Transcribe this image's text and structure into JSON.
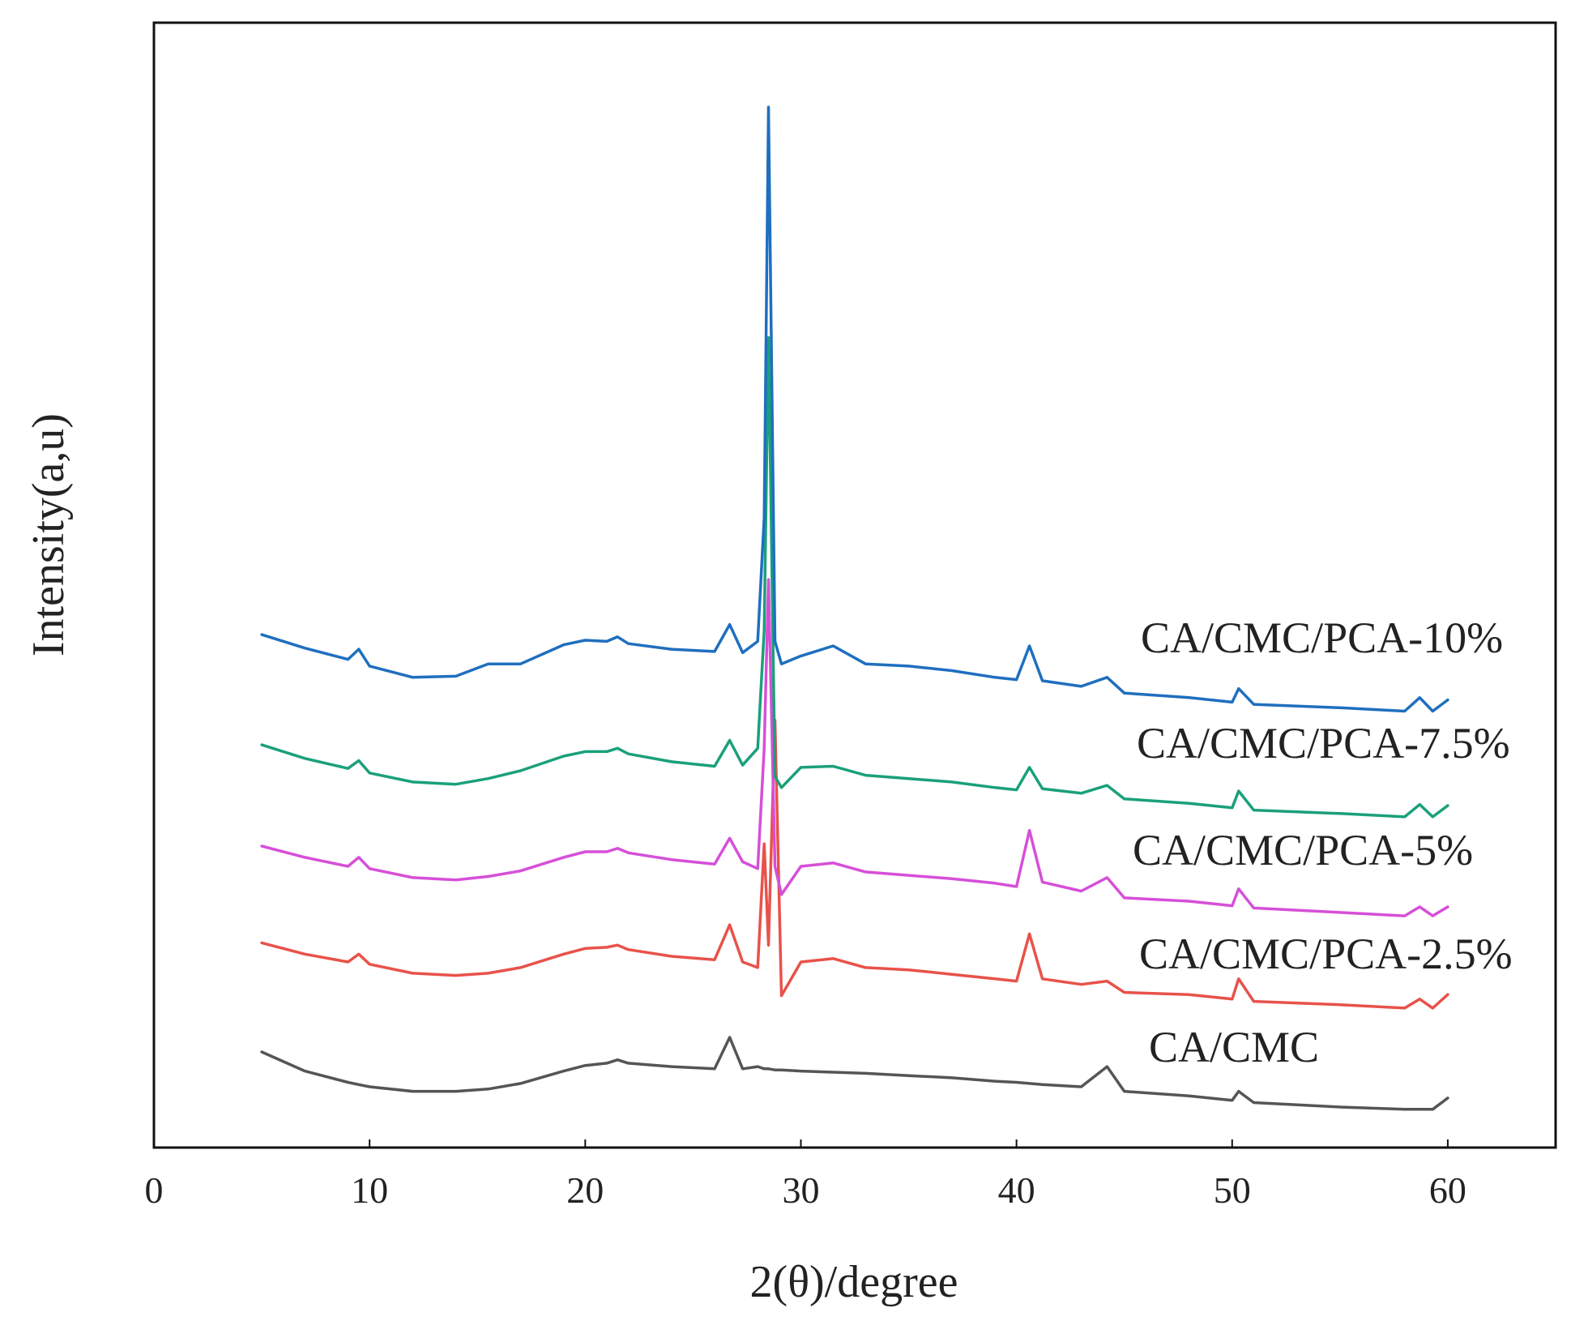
{
  "chart_data": {
    "type": "line",
    "title": "",
    "xlabel": "2(θ)/degree",
    "ylabel": "Intensity(a,u)",
    "xlim": [
      0,
      65
    ],
    "ylim": [
      0,
      1000
    ],
    "xticks": [
      0,
      10,
      20,
      30,
      40,
      50,
      60
    ],
    "yticks_shown": false,
    "grid": false,
    "legend": "inline labels at right of each trace",
    "x": [
      5,
      7,
      9,
      9.5,
      10,
      12,
      14,
      15.5,
      17,
      19,
      20,
      21,
      21.5,
      22,
      24,
      26,
      26.7,
      27.3,
      28,
      28.3,
      28.5,
      28.8,
      29.1,
      30,
      31.5,
      33,
      35,
      37,
      39,
      40,
      40.6,
      41.2,
      43,
      44.2,
      45,
      48,
      50,
      50.3,
      51,
      55,
      58,
      58.7,
      59.3,
      60
    ],
    "series": [
      {
        "name": "CA/CMC",
        "color": "#555555",
        "values": [
          85,
          68,
          58,
          56,
          54,
          50,
          50,
          52,
          57,
          68,
          73,
          75,
          78,
          75,
          72,
          70,
          98,
          70,
          72,
          70,
          70,
          69,
          69,
          68,
          67,
          66,
          64,
          62,
          59,
          58,
          57,
          56,
          54,
          72,
          50,
          46,
          42,
          50,
          40,
          36,
          34,
          34,
          34,
          44
        ]
      },
      {
        "name": "CA/CMC/PCA-2.5%",
        "color": "#e8524a",
        "values": [
          182,
          172,
          165,
          172,
          163,
          155,
          153,
          155,
          160,
          172,
          177,
          178,
          180,
          176,
          170,
          167,
          198,
          165,
          160,
          270,
          180,
          380,
          135,
          165,
          168,
          160,
          158,
          154,
          150,
          148,
          190,
          150,
          145,
          148,
          138,
          136,
          132,
          150,
          130,
          127,
          124,
          132,
          124,
          136
        ]
      },
      {
        "name": "CA/CMC/PCA-5%",
        "color": "#d64fd8",
        "values": [
          268,
          258,
          250,
          258,
          248,
          240,
          238,
          241,
          246,
          258,
          263,
          263,
          266,
          262,
          256,
          252,
          275,
          254,
          248,
          355,
          505,
          250,
          225,
          250,
          253,
          245,
          242,
          239,
          235,
          232,
          282,
          236,
          228,
          240,
          222,
          219,
          215,
          230,
          213,
          209,
          206,
          214,
          206,
          214
        ]
      },
      {
        "name": "CA/CMC/PCA-7.5%",
        "color": "#1aa07a",
        "values": [
          358,
          346,
          337,
          344,
          333,
          325,
          323,
          328,
          335,
          348,
          352,
          352,
          355,
          350,
          343,
          339,
          362,
          340,
          355,
          460,
          720,
          330,
          320,
          338,
          339,
          331,
          328,
          325,
          320,
          318,
          338,
          319,
          315,
          322,
          310,
          306,
          302,
          317,
          300,
          297,
          294,
          305,
          294,
          304
        ]
      },
      {
        "name": "CA/CMC/PCA-10%",
        "color": "#1f6fbf",
        "values": [
          456,
          444,
          434,
          443,
          428,
          418,
          419,
          430,
          430,
          447,
          451,
          450,
          454,
          448,
          443,
          441,
          465,
          440,
          450,
          560,
          925,
          450,
          430,
          437,
          446,
          430,
          428,
          424,
          418,
          416,
          446,
          415,
          410,
          418,
          404,
          400,
          396,
          408,
          394,
          391,
          388,
          400,
          388,
          398
        ]
      }
    ],
    "series_labels": [
      "CA/CMC",
      "CA/CMC/PCA-2.5%",
      "CA/CMC/PCA-5%",
      "CA/CMC/PCA-7.5%",
      "CA/CMC/PCA-10%"
    ]
  }
}
